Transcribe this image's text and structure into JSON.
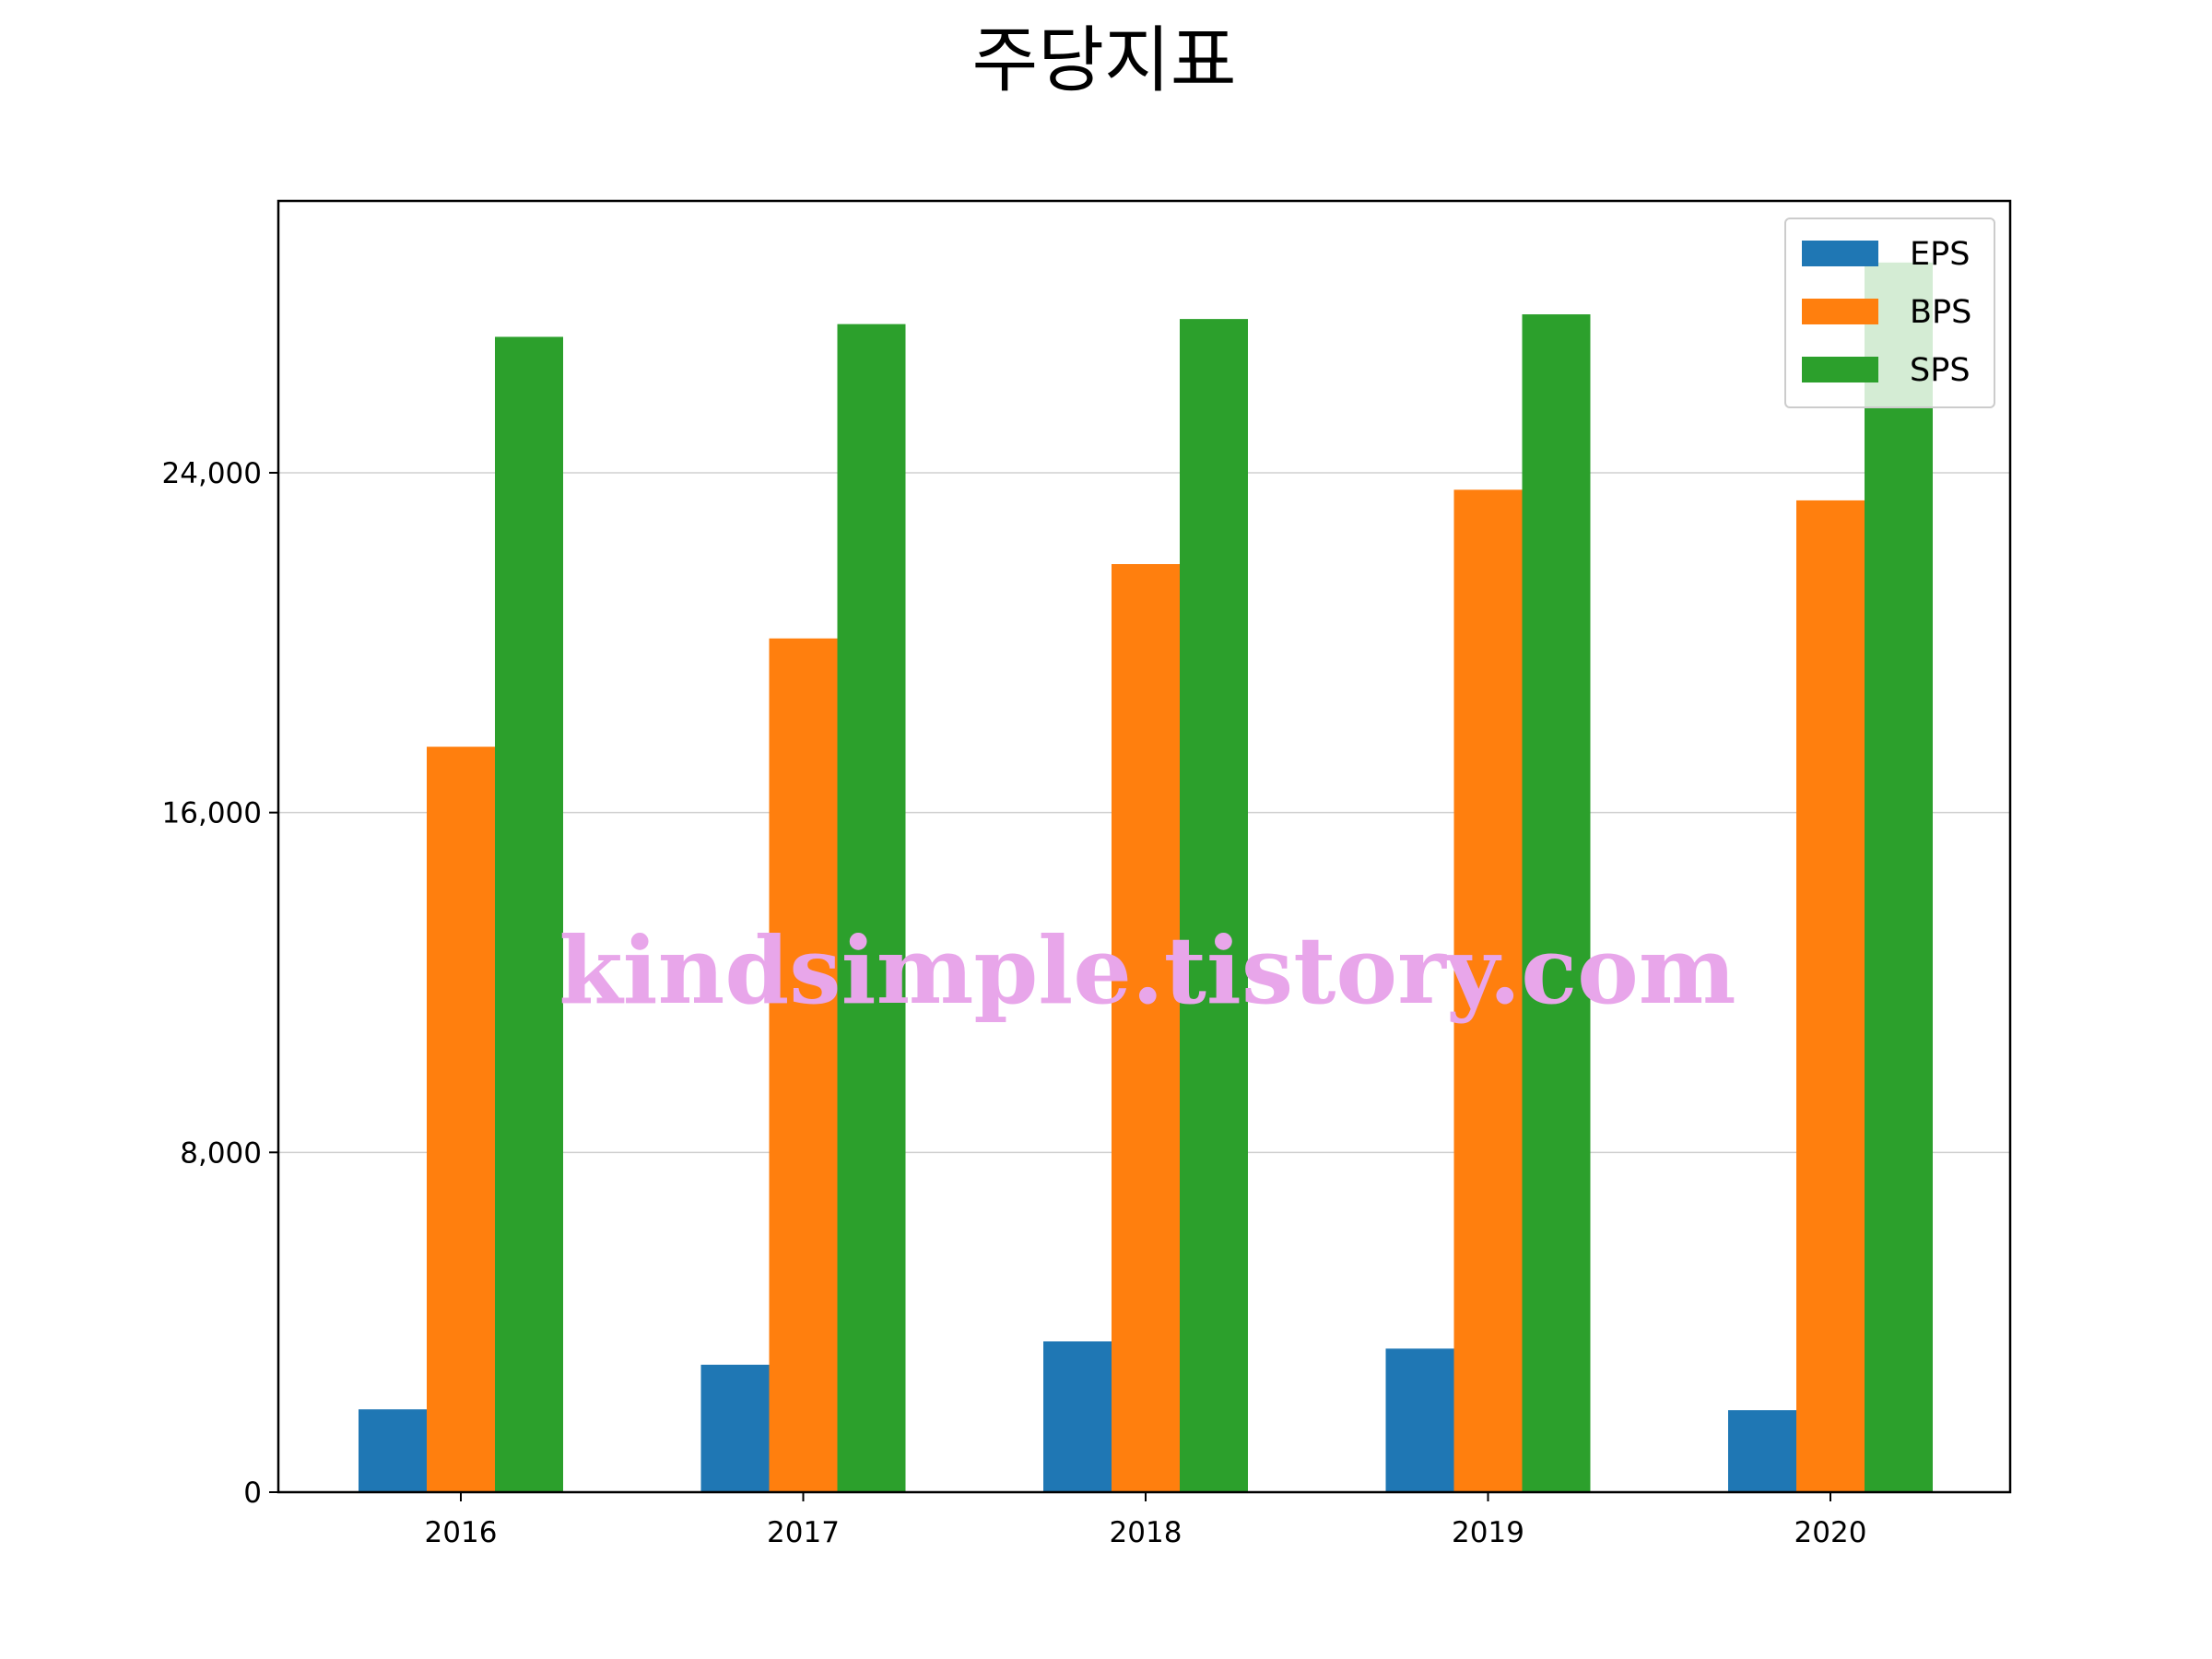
{
  "chart_data": {
    "type": "bar",
    "title": "주당지표",
    "categories": [
      "2016",
      "2017",
      "2018",
      "2019",
      "2020"
    ],
    "series": [
      {
        "name": "EPS",
        "values": [
          1950,
          3000,
          3550,
          3380,
          1930
        ],
        "color": "#1f77b4"
      },
      {
        "name": "BPS",
        "values": [
          17550,
          20100,
          21850,
          23600,
          23350
        ],
        "color": "#ff7f0e"
      },
      {
        "name": "SPS",
        "values": [
          27200,
          27500,
          27620,
          27730,
          28950
        ],
        "color": "#2ca02c"
      }
    ],
    "yticks": [
      0,
      8000,
      16000,
      24000
    ],
    "ytick_labels": [
      "0",
      "8,000",
      "16,000",
      "24,000"
    ],
    "ylim": [
      0,
      30400
    ],
    "grid": "horizontal",
    "legend": "top-right"
  },
  "watermark": "kindsimple.tistory.com"
}
